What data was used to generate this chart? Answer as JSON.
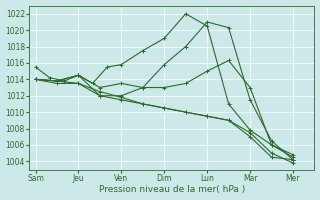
{
  "x_labels": [
    "Sam",
    "Jeu",
    "Ven",
    "Dim",
    "Lun",
    "Mar",
    "Mer"
  ],
  "x_tick_positions": [
    0,
    1,
    2,
    3,
    4,
    5,
    6
  ],
  "lines": [
    {
      "x": [
        0,
        0.33,
        0.67,
        1.0,
        1.33,
        1.67,
        2.0,
        2.5,
        3.0,
        3.5,
        4.0,
        4.5,
        5.0,
        5.5,
        6.0
      ],
      "y": [
        1015.5,
        1014.2,
        1013.8,
        1014.5,
        1013.5,
        1015.5,
        1015.8,
        1017.5,
        1019.0,
        1022.0,
        1020.5,
        1011.0,
        1007.8,
        1006.0,
        1004.5
      ]
    },
    {
      "x": [
        0,
        0.5,
        1.0,
        1.5,
        2.0,
        2.5,
        3.0,
        3.5,
        4.0,
        4.5,
        5.0,
        5.5,
        6.0
      ],
      "y": [
        1014.0,
        1013.8,
        1014.5,
        1013.0,
        1013.5,
        1013.0,
        1015.8,
        1018.0,
        1021.0,
        1020.3,
        1011.5,
        1006.5,
        1004.2
      ]
    },
    {
      "x": [
        0,
        0.5,
        1.0,
        1.5,
        2.0,
        2.5,
        3.0,
        3.5,
        4.0,
        4.5,
        5.0,
        5.5,
        6.0
      ],
      "y": [
        1014.0,
        1013.8,
        1014.5,
        1012.0,
        1012.0,
        1013.0,
        1013.0,
        1013.5,
        1015.0,
        1016.3,
        1013.0,
        1006.0,
        1004.8
      ]
    },
    {
      "x": [
        0,
        0.5,
        1.0,
        1.5,
        2.0,
        2.5,
        3.0,
        3.5,
        4.0,
        4.5,
        5.0,
        5.5,
        6.0
      ],
      "y": [
        1014.0,
        1013.8,
        1013.5,
        1012.0,
        1011.5,
        1011.0,
        1010.5,
        1010.0,
        1009.5,
        1009.0,
        1007.5,
        1005.0,
        1003.8
      ]
    },
    {
      "x": [
        0,
        0.5,
        1.0,
        1.5,
        2.0,
        2.5,
        3.0,
        3.5,
        4.0,
        4.5,
        5.0,
        5.5,
        6.0
      ],
      "y": [
        1014.0,
        1013.5,
        1013.5,
        1012.5,
        1011.8,
        1011.0,
        1010.5,
        1010.0,
        1009.5,
        1009.0,
        1007.0,
        1004.5,
        1004.2
      ]
    }
  ],
  "line_color": "#2d6a2d",
  "marker": "+",
  "markersize": 3,
  "linewidth": 0.8,
  "ylabel_ticks": [
    1004,
    1006,
    1008,
    1010,
    1012,
    1014,
    1016,
    1018,
    1020,
    1022
  ],
  "ylim": [
    1003,
    1023
  ],
  "xlim": [
    -0.15,
    6.5
  ],
  "xlabel": "Pression niveau de la mer( hPa )",
  "bg_color": "#cce8e8",
  "grid_color": "#ffffff",
  "tick_label_color": "#2d6a2d",
  "xlabel_color": "#2d6a2d",
  "tick_label_fontsize": 5.5,
  "xlabel_fontsize": 6.5
}
